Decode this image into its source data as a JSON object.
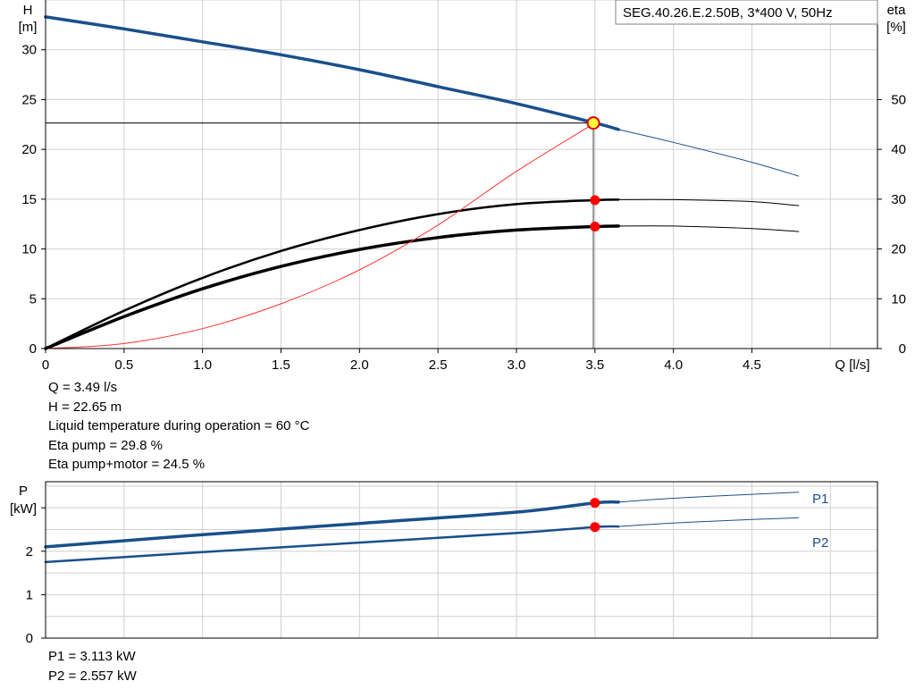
{
  "chart_data": [
    {
      "type": "line",
      "title": "SEG.40.26.E.2.50B, 3*400 V, 50Hz",
      "xlabel": "Q [l/s]",
      "ylabel_left": [
        "H",
        "[m]"
      ],
      "ylabel_right": [
        "eta",
        "[%]"
      ],
      "xlim": [
        0,
        5.3
      ],
      "ylim_left": [
        0,
        35
      ],
      "ylim_right": [
        0,
        70
      ],
      "x_ticks": [
        0,
        0.5,
        1.0,
        1.5,
        2.0,
        2.5,
        3.0,
        3.5,
        4.0,
        4.5
      ],
      "x_tick_labels": [
        "0",
        "0.5",
        "1.0",
        "1.5",
        "2.0",
        "2.5",
        "3.0",
        "3.5",
        "4.0",
        "4.5"
      ],
      "y_left_ticks": [
        0,
        5,
        10,
        15,
        20,
        25,
        30
      ],
      "y_right_ticks": [
        0,
        10,
        20,
        30,
        40,
        50
      ],
      "grid": true,
      "series": [
        {
          "kind": "head",
          "axis": "left",
          "color": "#1a4f8b",
          "duty_x": [
            0,
            0.5,
            1.0,
            1.5,
            2.0,
            2.5,
            3.0,
            3.5,
            3.65
          ],
          "duty_y": [
            33.3,
            32.1,
            30.8,
            29.5,
            28.0,
            26.3,
            24.6,
            22.65,
            22.0
          ],
          "ext_x": [
            3.65,
            4.0,
            4.5,
            4.8
          ],
          "ext_y": [
            22.0,
            20.7,
            18.7,
            17.3
          ]
        },
        {
          "kind": "eta_pump",
          "axis": "right",
          "color": "#000000",
          "duty_x": [
            0,
            0.5,
            1.0,
            1.5,
            2.0,
            2.5,
            3.0,
            3.5,
            3.65
          ],
          "duty_y": [
            0,
            7.6,
            14.2,
            19.6,
            23.8,
            27.0,
            29.0,
            29.8,
            29.9
          ],
          "ext_x": [
            3.65,
            4.0,
            4.5,
            4.8
          ],
          "ext_y": [
            29.9,
            29.9,
            29.5,
            28.7
          ]
        },
        {
          "kind": "eta_pump_motor",
          "axis": "right",
          "color": "#000000",
          "duty_x": [
            0,
            0.5,
            1.0,
            1.5,
            2.0,
            2.5,
            3.0,
            3.5,
            3.65
          ],
          "duty_y": [
            0,
            6.4,
            12.0,
            16.5,
            19.9,
            22.3,
            23.8,
            24.5,
            24.6
          ],
          "ext_x": [
            3.65,
            4.0,
            4.5,
            4.8
          ],
          "ext_y": [
            24.6,
            24.6,
            24.1,
            23.5
          ]
        },
        {
          "kind": "system_curve",
          "axis": "left",
          "color": "#ff3030",
          "x": [
            0,
            0.5,
            1.0,
            1.5,
            2.0,
            2.5,
            3.0,
            3.5
          ],
          "y": [
            0,
            0.5,
            2.0,
            4.5,
            7.9,
            12.4,
            17.8,
            22.65
          ]
        }
      ],
      "operating_point": {
        "x": 3.49,
        "y": 22.65
      },
      "markers": [
        {
          "series": "eta_pump",
          "x": 3.5,
          "y_right": 29.8
        },
        {
          "series": "eta_pump_motor",
          "x": 3.5,
          "y_right": 24.5
        }
      ]
    },
    {
      "type": "line",
      "ylabel": [
        "P",
        "[kW]"
      ],
      "xlim": [
        0,
        5.3
      ],
      "ylim": [
        0,
        3.6
      ],
      "y_ticks": [
        0,
        1,
        2,
        3
      ],
      "y_tick_labels": [
        "0",
        "1",
        "2",
        ""
      ],
      "grid": true,
      "series": [
        {
          "name": "P1",
          "color": "#1a4f8b",
          "duty_x": [
            0,
            1.0,
            2.0,
            3.0,
            3.5,
            3.65
          ],
          "duty_y": [
            2.1,
            2.38,
            2.64,
            2.9,
            3.113,
            3.13
          ],
          "ext_x": [
            3.65,
            4.0,
            4.5,
            4.8
          ],
          "ext_y": [
            3.13,
            3.22,
            3.31,
            3.36
          ]
        },
        {
          "name": "P2",
          "color": "#1a4f8b",
          "duty_x": [
            0,
            1.0,
            2.0,
            3.0,
            3.5,
            3.65
          ],
          "duty_y": [
            1.75,
            1.98,
            2.2,
            2.42,
            2.557,
            2.57
          ],
          "ext_x": [
            3.65,
            4.0,
            4.5,
            4.8
          ],
          "ext_y": [
            2.57,
            2.65,
            2.73,
            2.77
          ]
        }
      ],
      "markers": [
        {
          "series": "P1",
          "x": 3.5,
          "y": 3.113
        },
        {
          "series": "P2",
          "x": 3.5,
          "y": 2.557
        }
      ]
    }
  ],
  "results": {
    "q": "Q = 3.49 l/s",
    "h": "H = 22.65 m",
    "temp": "Liquid temperature during operation = 60 °C",
    "eta_pump": "Eta pump = 29.8 %",
    "eta_pump_motor": "Eta pump+motor = 24.5 %"
  },
  "power_results": {
    "p1": "P1 = 3.113 kW",
    "p2": "P2 = 2.557 kW"
  }
}
